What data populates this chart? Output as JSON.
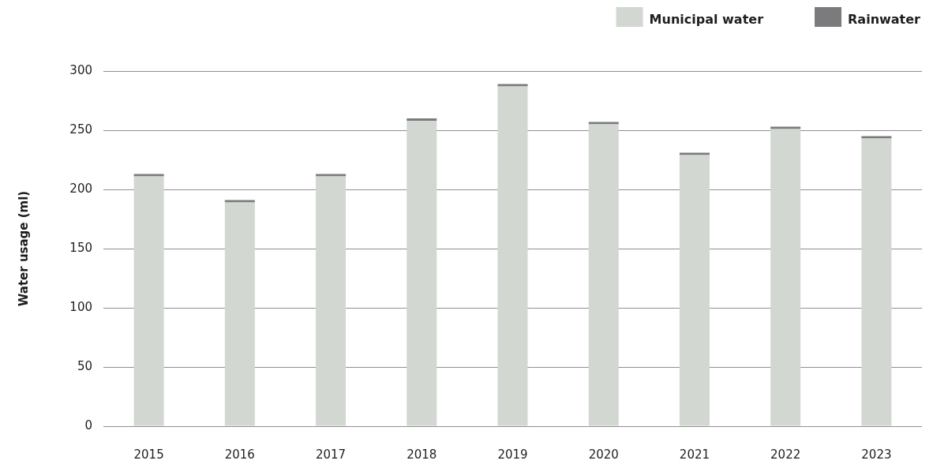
{
  "chart_data": {
    "type": "bar",
    "stacked": true,
    "ylabel": "Water usage (ml)",
    "categories": [
      "2015",
      "2016",
      "2017",
      "2018",
      "2019",
      "2020",
      "2021",
      "2022",
      "2023"
    ],
    "series": [
      {
        "name": "Municipal water",
        "color": "#d2d7d2",
        "values": [
          211,
          189,
          211,
          258,
          287,
          255,
          229,
          251,
          243
        ]
      },
      {
        "name": "Rainwater",
        "color": "#7b7b7d",
        "values": [
          2,
          2,
          2,
          2,
          2,
          2,
          2,
          2,
          2
        ]
      }
    ],
    "ylim": [
      0,
      300
    ],
    "yticks": [
      0,
      50,
      100,
      150,
      200,
      250,
      300
    ],
    "grid": "y",
    "legend": "top right"
  }
}
